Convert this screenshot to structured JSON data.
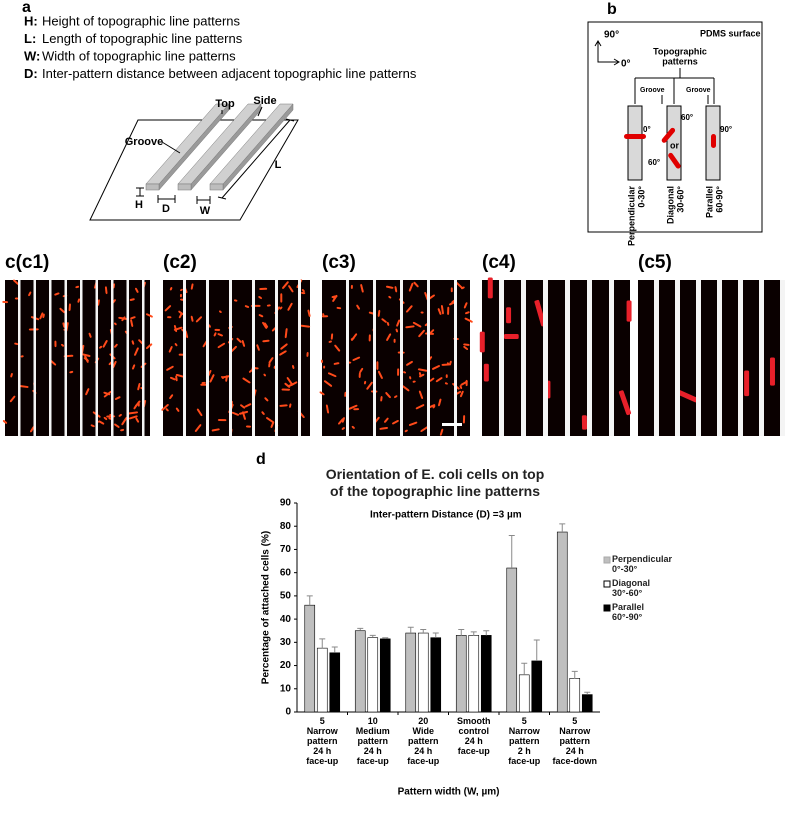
{
  "panel_a": {
    "label": "a",
    "definitions": [
      {
        "symbol": "H:",
        "text": "Height of topographic line patterns"
      },
      {
        "symbol": "L:",
        "text": "Length of topographic line patterns"
      },
      {
        "symbol": "W:",
        "text": "Width of topographic line patterns"
      },
      {
        "symbol": "D:",
        "text": "Inter-pattern  distance between adjacent topographic line patterns"
      }
    ],
    "diagram": {
      "top": "Top",
      "side": "Side",
      "groove": "Groove",
      "h": "H",
      "d": "D",
      "w": "W",
      "l": "L"
    }
  },
  "panel_b": {
    "label": "b",
    "surface": "PDMS surface",
    "angle_90": "90°",
    "angle_0": "0°",
    "patterns": [
      "Topographic",
      "patterns"
    ],
    "groove_left": "Groove",
    "groove_right": "Groove",
    "perp_angle": "0°",
    "diag_angle_top": "60°",
    "or": "or",
    "diag_angle_bottom": "60°",
    "par_angle": "90°",
    "columns": [
      {
        "name": "Perpendicular",
        "range": "0-30°"
      },
      {
        "name": "Diagonal",
        "range": "30-60°"
      },
      {
        "name": "Parallel",
        "range": "60-90°"
      }
    ]
  },
  "panel_c": {
    "labels": [
      "c(c1)",
      "(c2)",
      "(c3)",
      "(c4)",
      "(c5)"
    ]
  },
  "panel_d": {
    "label": "d"
  },
  "chart_data": {
    "type": "bar",
    "title": "Orientation of E. coli cells on top\nof the topographic line patterns",
    "annotation": "Inter-pattern Distance (D) =3 µm",
    "ylabel": "Percentage of attached cells (%)",
    "xlabel": "Pattern width (W, µm)",
    "categories": [
      "5\nNarrow\npattern\n24 h\nface-up",
      "10\nMedium\npattern\n24 h\nface-up",
      "20\nWide\npattern\n24 h\nface-up",
      "Smooth\ncontrol\n24 h\nface-up",
      "5\nNarrow\npattern\n2 h\nface-up",
      "5\nNarrow\npattern\n24 h\nface-down"
    ],
    "series": [
      {
        "name": "Perpendicular\n0°-30°",
        "color": "#bfbfbf",
        "values": [
          46,
          35,
          34,
          33,
          62,
          77.5
        ],
        "errors": [
          4,
          1,
          2.5,
          2.5,
          14,
          3.5
        ]
      },
      {
        "name": "Diagonal\n30°-60°",
        "color": "#ffffff",
        "values": [
          27.5,
          32,
          34,
          33,
          16,
          14.5
        ],
        "errors": [
          4,
          1,
          1.5,
          1.5,
          5,
          3
        ]
      },
      {
        "name": "Parallel\n60°-90°",
        "color": "#000000",
        "values": [
          25.5,
          31.5,
          32,
          33,
          22,
          7.5
        ],
        "errors": [
          2.5,
          0.5,
          2,
          2,
          9,
          1
        ]
      }
    ],
    "ylim": [
      0,
      90
    ],
    "yticks": [
      0,
      10,
      20,
      30,
      40,
      50,
      60,
      70,
      80,
      90
    ],
    "legend": "right"
  }
}
